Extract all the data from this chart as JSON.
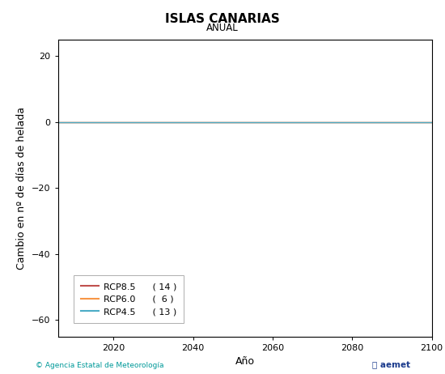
{
  "title": "ISLAS CANARIAS",
  "subtitle": "ANUAL",
  "xlabel": "Año",
  "ylabel": "Cambio en nº de días de helada",
  "xlim": [
    2006,
    2100
  ],
  "ylim": [
    -65,
    25
  ],
  "yticks": [
    -60,
    -40,
    -20,
    0,
    20
  ],
  "xticks": [
    2020,
    2040,
    2060,
    2080,
    2100
  ],
  "lines": [
    {
      "label": "RCP8.5",
      "count": "( 14 )",
      "color": "#c0504d",
      "y_value": 0.0
    },
    {
      "label": "RCP6.0",
      "count": "(  6 )",
      "color": "#f79646",
      "y_value": 0.0
    },
    {
      "label": "RCP4.5",
      "count": "( 13 )",
      "color": "#4bacc6",
      "y_value": 0.0
    }
  ],
  "background_color": "#ffffff",
  "footer_left": "© Agencia Estatal de Meteorología",
  "footer_left_color": "#009999",
  "title_fontsize": 11,
  "subtitle_fontsize": 8.5,
  "tick_fontsize": 8,
  "label_fontsize": 9,
  "legend_fontsize": 8
}
